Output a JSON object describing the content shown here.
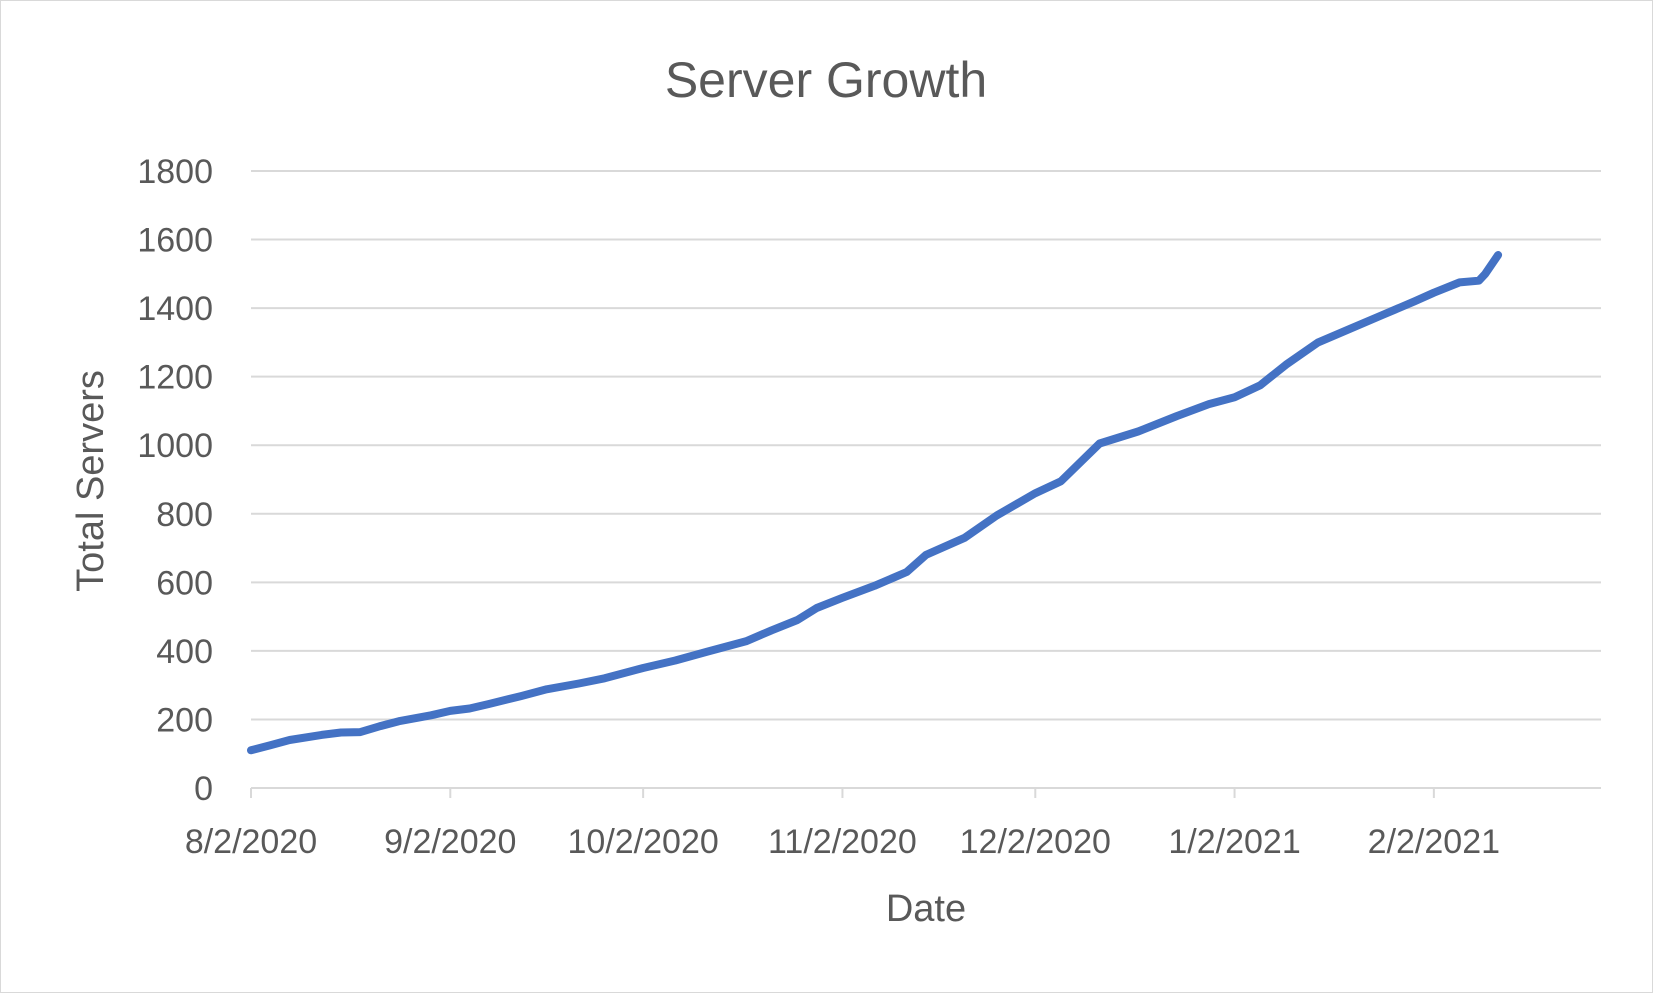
{
  "chart_data": {
    "type": "line",
    "title": "Server Growth",
    "xlabel": "Date",
    "ylabel": "Total Servers",
    "x_axis": {
      "type": "date",
      "min": "2020-08-02",
      "max": "2021-02-28",
      "ticks": [
        {
          "date": "2020-08-02",
          "label": "8/2/2020"
        },
        {
          "date": "2020-09-02",
          "label": "9/2/2020"
        },
        {
          "date": "2020-10-02",
          "label": "10/2/2020"
        },
        {
          "date": "2020-11-02",
          "label": "11/2/2020"
        },
        {
          "date": "2020-12-02",
          "label": "12/2/2020"
        },
        {
          "date": "2021-01-02",
          "label": "1/2/2021"
        },
        {
          "date": "2021-02-02",
          "label": "2/2/2021"
        }
      ]
    },
    "y_axis": {
      "min": 0,
      "max": 1800,
      "ticks": [
        0,
        200,
        400,
        600,
        800,
        1000,
        1200,
        1400,
        1600,
        1800
      ]
    },
    "grid": {
      "horizontal": true,
      "vertical": false
    },
    "legend": "none",
    "series_color": "#4472c4",
    "gridline_color": "#d9d9d9",
    "text_color": "#595959",
    "series": [
      {
        "x": [
          "2020-08-02",
          "2020-08-05",
          "2020-08-08",
          "2020-08-13",
          "2020-08-16",
          "2020-08-19",
          "2020-08-22",
          "2020-08-25",
          "2020-08-30",
          "2020-09-02",
          "2020-09-05",
          "2020-09-08",
          "2020-09-13",
          "2020-09-17",
          "2020-09-22",
          "2020-09-26",
          "2020-10-02",
          "2020-10-07",
          "2020-10-12",
          "2020-10-18",
          "2020-10-22",
          "2020-10-26",
          "2020-10-29",
          "2020-11-02",
          "2020-11-07",
          "2020-11-12",
          "2020-11-15",
          "2020-11-21",
          "2020-11-26",
          "2020-12-02",
          "2020-12-06",
          "2020-12-12",
          "2020-12-18",
          "2020-12-24",
          "2020-12-29",
          "2021-01-02",
          "2021-01-06",
          "2021-01-10",
          "2021-01-15",
          "2021-01-20",
          "2021-01-25",
          "2021-01-30",
          "2021-02-02",
          "2021-02-06",
          "2021-02-09",
          "2021-02-10",
          "2021-02-12"
        ],
        "y": [
          110,
          125,
          140,
          155,
          162,
          163,
          180,
          195,
          212,
          225,
          232,
          245,
          268,
          288,
          305,
          320,
          350,
          372,
          398,
          428,
          460,
          490,
          525,
          555,
          590,
          630,
          680,
          730,
          795,
          860,
          895,
          1005,
          1040,
          1085,
          1120,
          1140,
          1175,
          1235,
          1300,
          1340,
          1380,
          1420,
          1445,
          1475,
          1480,
          1500,
          1555
        ]
      }
    ]
  }
}
